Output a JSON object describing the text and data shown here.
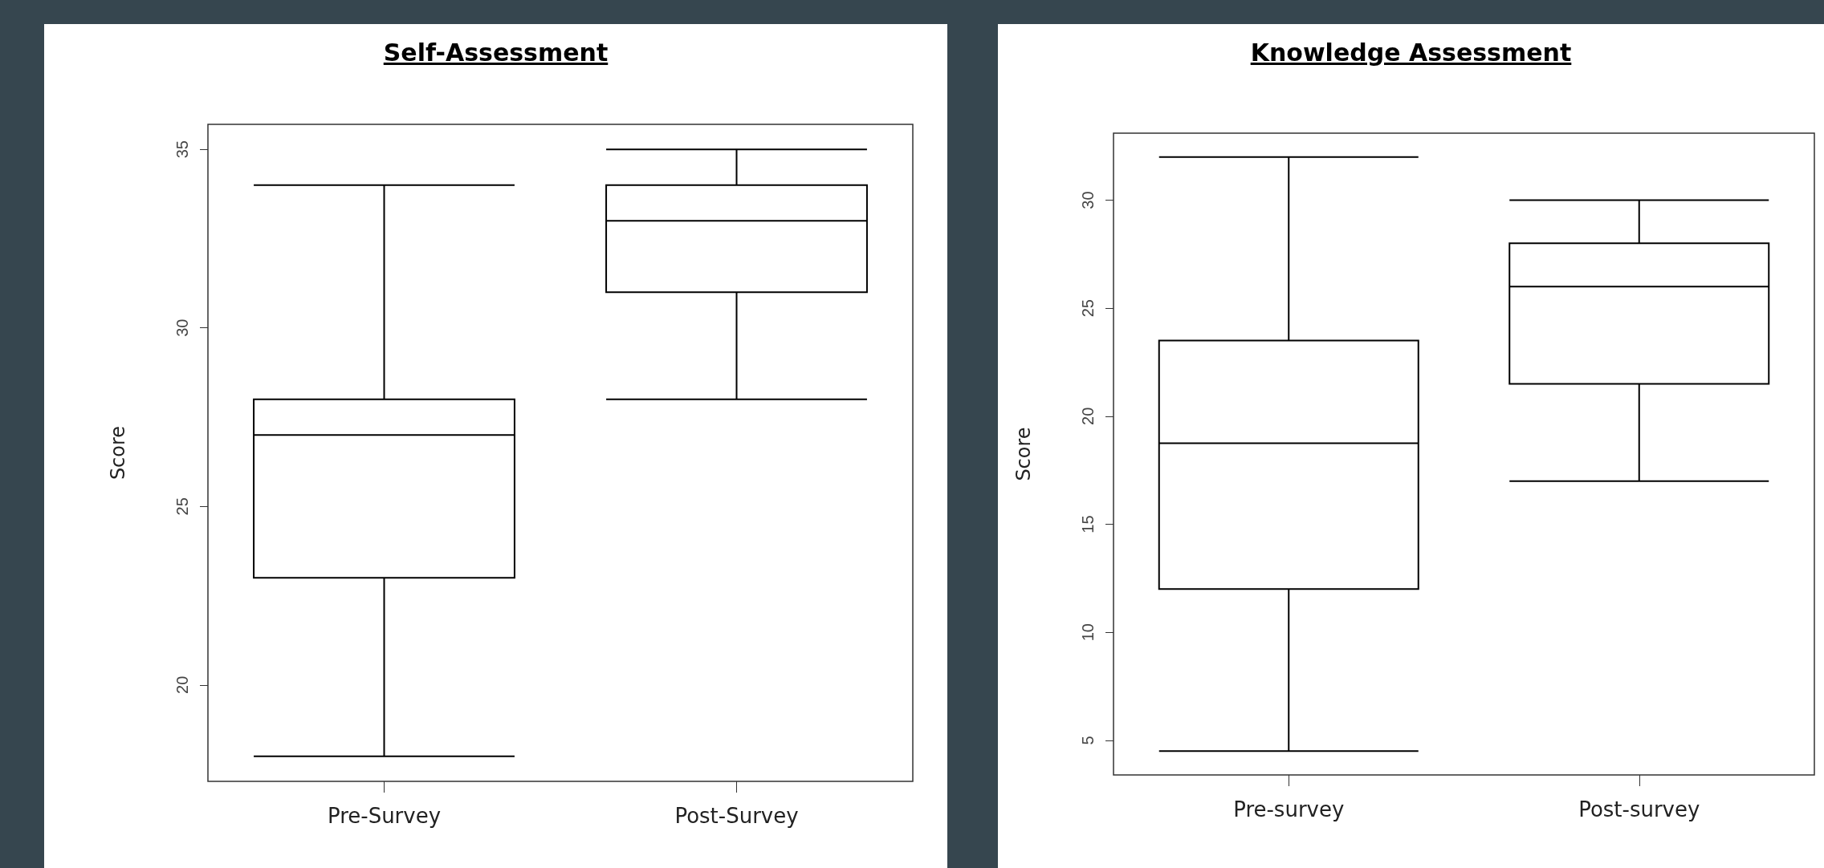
{
  "chart_data": [
    {
      "type": "box",
      "title": "Self-Assessment",
      "ylabel": "Score",
      "categories": [
        "Pre-Survey",
        "Post-Survey"
      ],
      "ylim": [
        17.3,
        35.7
      ],
      "yticks": [
        20,
        25,
        30,
        35
      ],
      "grid": false,
      "boxes": [
        {
          "low": 18,
          "q1": 23,
          "median": 27,
          "q3": 28,
          "high": 34
        },
        {
          "low": 28,
          "q1": 31,
          "median": 33,
          "q3": 34,
          "high": 35
        }
      ]
    },
    {
      "type": "box",
      "title": "Knowledge Assessment",
      "ylabel": "Score",
      "categories": [
        "Pre-survey",
        "Post-survey"
      ],
      "ylim": [
        3.4,
        33.1
      ],
      "yticks": [
        5,
        10,
        15,
        20,
        25,
        30
      ],
      "grid": false,
      "boxes": [
        {
          "low": 4.5,
          "q1": 12,
          "median": 18.75,
          "q3": 23.5,
          "high": 32
        },
        {
          "low": 17,
          "q1": 21.5,
          "median": 26,
          "q3": 28,
          "high": 30
        }
      ]
    }
  ]
}
